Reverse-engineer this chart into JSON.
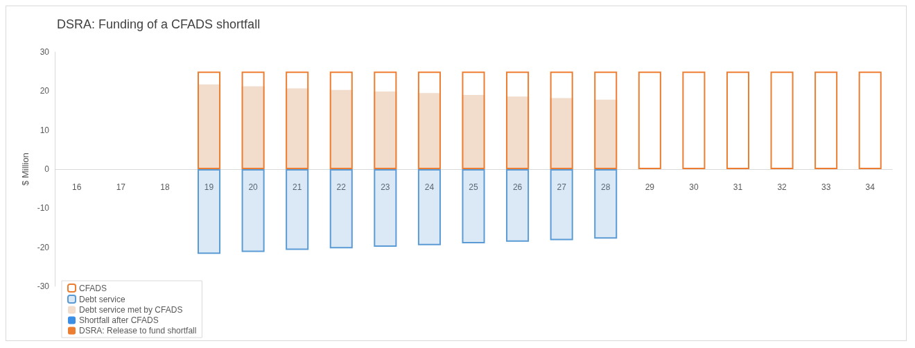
{
  "chart_data": {
    "type": "bar",
    "title": "DSRA: Funding of a CFADS shortfall",
    "ylabel": "$ Million",
    "categories": [
      "16",
      "17",
      "18",
      "19",
      "20",
      "21",
      "22",
      "23",
      "24",
      "25",
      "26",
      "27",
      "28",
      "29",
      "30",
      "31",
      "32",
      "33",
      "34"
    ],
    "series": [
      {
        "name": "CFADS",
        "color": "#ed7d31",
        "values": [
          null,
          null,
          null,
          25,
          25,
          25,
          25,
          25,
          25,
          25,
          25,
          25,
          25,
          25,
          25,
          25,
          25,
          25,
          25
        ]
      },
      {
        "name": "Debt service",
        "color": "#5b9bd5",
        "values": [
          null,
          null,
          null,
          -21.7,
          -21.2,
          -20.7,
          -20.3,
          -19.9,
          -19.5,
          -19.0,
          -18.6,
          -18.2,
          -17.8,
          null,
          null,
          null,
          null,
          null,
          null
        ]
      },
      {
        "name": "Debt service met by CFADS",
        "color": "#f2dccb",
        "values": [
          null,
          null,
          null,
          21.7,
          21.2,
          20.7,
          20.3,
          19.9,
          19.5,
          19.0,
          18.6,
          18.2,
          17.8,
          null,
          null,
          null,
          null,
          null,
          null
        ]
      },
      {
        "name": "Shortfall after CFADS",
        "color": "#3a8ee6",
        "values": [
          null,
          null,
          null,
          null,
          null,
          null,
          null,
          null,
          null,
          null,
          null,
          null,
          null,
          null,
          null,
          null,
          null,
          null,
          null
        ]
      },
      {
        "name": "DSRA: Release to fund shortfall",
        "color": "#ed7d31",
        "values": [
          null,
          null,
          null,
          null,
          null,
          null,
          null,
          null,
          null,
          null,
          null,
          null,
          null,
          null,
          null,
          null,
          null,
          null,
          null
        ]
      }
    ],
    "ylim": [
      -30,
      30
    ],
    "yticks": [
      -30,
      -20,
      -10,
      0,
      10,
      20,
      30
    ],
    "grid": false,
    "legend": "bottom left"
  }
}
